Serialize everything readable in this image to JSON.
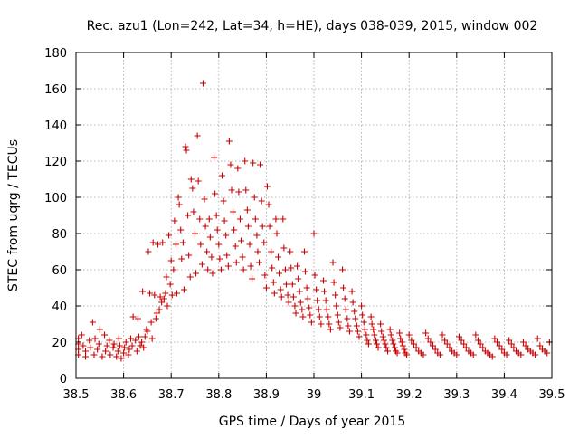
{
  "chart_data": {
    "type": "scatter",
    "title": "Rec. azu1 (Lon=242, Lat=34, h=HE), days 038-039, 2015, window 002",
    "xlabel": "GPS time / Days of year 2015",
    "ylabel": "STEC from uqrg / TECUs",
    "xlim": [
      38.5,
      39.5
    ],
    "ylim": [
      0,
      180
    ],
    "xticks": [
      38.5,
      38.6,
      38.7,
      38.8,
      38.9,
      39,
      39.1,
      39.2,
      39.3,
      39.4,
      39.5
    ],
    "xtick_labels": [
      "38.5",
      "38.6",
      "38.7",
      "38.8",
      "38.9",
      "39",
      "39.1",
      "39.2",
      "39.3",
      "39.4",
      "39.5"
    ],
    "yticks": [
      0,
      20,
      40,
      60,
      80,
      100,
      120,
      140,
      160,
      180
    ],
    "ytick_labels": [
      "0",
      "20",
      "40",
      "60",
      "80",
      "100",
      "120",
      "140",
      "160",
      "180"
    ],
    "grid": true,
    "marker": "+",
    "color": "#cc0000",
    "series": [
      {
        "name": "STEC",
        "points": [
          [
            38.505,
            22
          ],
          [
            38.505,
            19
          ],
          [
            38.505,
            16
          ],
          [
            38.505,
            13
          ],
          [
            38.512,
            24
          ],
          [
            38.515,
            18
          ],
          [
            38.52,
            15
          ],
          [
            38.52,
            12
          ],
          [
            38.528,
            21
          ],
          [
            38.53,
            17
          ],
          [
            38.535,
            31
          ],
          [
            38.538,
            13
          ],
          [
            38.54,
            22
          ],
          [
            38.545,
            16
          ],
          [
            38.548,
            19
          ],
          [
            38.55,
            27
          ],
          [
            38.555,
            12
          ],
          [
            38.56,
            24
          ],
          [
            38.562,
            15
          ],
          [
            38.565,
            18
          ],
          [
            38.57,
            21
          ],
          [
            38.572,
            13
          ],
          [
            38.578,
            17
          ],
          [
            38.58,
            19
          ],
          [
            38.585,
            12
          ],
          [
            38.588,
            15
          ],
          [
            38.59,
            22
          ],
          [
            38.592,
            18
          ],
          [
            38.595,
            11
          ],
          [
            38.6,
            14
          ],
          [
            38.602,
            17
          ],
          [
            38.605,
            20
          ],
          [
            38.61,
            13
          ],
          [
            38.612,
            16
          ],
          [
            38.615,
            22
          ],
          [
            38.618,
            18
          ],
          [
            38.62,
            34
          ],
          [
            38.625,
            21
          ],
          [
            38.628,
            15
          ],
          [
            38.63,
            33
          ],
          [
            38.632,
            23
          ],
          [
            38.635,
            18
          ],
          [
            38.638,
            20
          ],
          [
            38.64,
            48
          ],
          [
            38.642,
            17
          ],
          [
            38.645,
            23
          ],
          [
            38.648,
            27
          ],
          [
            38.65,
            26
          ],
          [
            38.652,
            70
          ],
          [
            38.655,
            47
          ],
          [
            38.658,
            31
          ],
          [
            38.66,
            22
          ],
          [
            38.662,
            75
          ],
          [
            38.665,
            46
          ],
          [
            38.668,
            33
          ],
          [
            38.67,
            36
          ],
          [
            38.672,
            74
          ],
          [
            38.675,
            38
          ],
          [
            38.677,
            45
          ],
          [
            38.68,
            42
          ],
          [
            38.682,
            75
          ],
          [
            38.685,
            44
          ],
          [
            38.688,
            47
          ],
          [
            38.69,
            56
          ],
          [
            38.692,
            40
          ],
          [
            38.695,
            79
          ],
          [
            38.698,
            52
          ],
          [
            38.7,
            65
          ],
          [
            38.702,
            46
          ],
          [
            38.705,
            60
          ],
          [
            38.707,
            87
          ],
          [
            38.71,
            74
          ],
          [
            38.712,
            47
          ],
          [
            38.715,
            100
          ],
          [
            38.717,
            96
          ],
          [
            38.72,
            82
          ],
          [
            38.722,
            66
          ],
          [
            38.725,
            75
          ],
          [
            38.727,
            49
          ],
          [
            38.73,
            128
          ],
          [
            38.732,
            126
          ],
          [
            38.735,
            90
          ],
          [
            38.737,
            68
          ],
          [
            38.74,
            56
          ],
          [
            38.742,
            110
          ],
          [
            38.745,
            105
          ],
          [
            38.747,
            92
          ],
          [
            38.75,
            80
          ],
          [
            38.752,
            58
          ],
          [
            38.755,
            134
          ],
          [
            38.757,
            109
          ],
          [
            38.76,
            88
          ],
          [
            38.762,
            74
          ],
          [
            38.765,
            63
          ],
          [
            38.767,
            163
          ],
          [
            38.77,
            99
          ],
          [
            38.772,
            84
          ],
          [
            38.775,
            70
          ],
          [
            38.777,
            60
          ],
          [
            38.78,
            88
          ],
          [
            38.782,
            78
          ],
          [
            38.785,
            67
          ],
          [
            38.787,
            58
          ],
          [
            38.79,
            122
          ],
          [
            38.792,
            102
          ],
          [
            38.795,
            90
          ],
          [
            38.797,
            82
          ],
          [
            38.8,
            74
          ],
          [
            38.802,
            66
          ],
          [
            38.805,
            60
          ],
          [
            38.807,
            112
          ],
          [
            38.81,
            98
          ],
          [
            38.812,
            87
          ],
          [
            38.815,
            79
          ],
          [
            38.817,
            68
          ],
          [
            38.82,
            62
          ],
          [
            38.822,
            131
          ],
          [
            38.825,
            118
          ],
          [
            38.827,
            104
          ],
          [
            38.83,
            92
          ],
          [
            38.832,
            82
          ],
          [
            38.835,
            73
          ],
          [
            38.837,
            64
          ],
          [
            38.84,
            116
          ],
          [
            38.842,
            103
          ],
          [
            38.845,
            88
          ],
          [
            38.847,
            76
          ],
          [
            38.85,
            67
          ],
          [
            38.852,
            60
          ],
          [
            38.855,
            120
          ],
          [
            38.857,
            104
          ],
          [
            38.86,
            93
          ],
          [
            38.862,
            84
          ],
          [
            38.865,
            74
          ],
          [
            38.867,
            62
          ],
          [
            38.87,
            55
          ],
          [
            38.872,
            119
          ],
          [
            38.875,
            100
          ],
          [
            38.877,
            88
          ],
          [
            38.88,
            79
          ],
          [
            38.882,
            70
          ],
          [
            38.885,
            64
          ],
          [
            38.887,
            118
          ],
          [
            38.89,
            98
          ],
          [
            38.892,
            84
          ],
          [
            38.895,
            75
          ],
          [
            38.897,
            57
          ],
          [
            38.9,
            50
          ],
          [
            38.902,
            106
          ],
          [
            38.905,
            96
          ],
          [
            38.907,
            84
          ],
          [
            38.91,
            70
          ],
          [
            38.912,
            61
          ],
          [
            38.915,
            53
          ],
          [
            38.917,
            47
          ],
          [
            38.92,
            88
          ],
          [
            38.922,
            80
          ],
          [
            38.925,
            67
          ],
          [
            38.927,
            58
          ],
          [
            38.93,
            49
          ],
          [
            38.932,
            45
          ],
          [
            38.935,
            88
          ],
          [
            38.937,
            72
          ],
          [
            38.94,
            60
          ],
          [
            38.942,
            52
          ],
          [
            38.945,
            46
          ],
          [
            38.947,
            42
          ],
          [
            38.95,
            70
          ],
          [
            38.952,
            61
          ],
          [
            38.955,
            52
          ],
          [
            38.957,
            45
          ],
          [
            38.96,
            40
          ],
          [
            38.962,
            36
          ],
          [
            38.965,
            62
          ],
          [
            38.967,
            55
          ],
          [
            38.97,
            48
          ],
          [
            38.972,
            42
          ],
          [
            38.975,
            38
          ],
          [
            38.977,
            34
          ],
          [
            38.98,
            70
          ],
          [
            38.982,
            59
          ],
          [
            38.985,
            50
          ],
          [
            38.987,
            44
          ],
          [
            38.99,
            39
          ],
          [
            38.992,
            35
          ],
          [
            38.995,
            31
          ],
          [
            39.0,
            80
          ],
          [
            39.002,
            57
          ],
          [
            39.005,
            49
          ],
          [
            39.007,
            43
          ],
          [
            39.01,
            38
          ],
          [
            39.012,
            34
          ],
          [
            39.015,
            30
          ],
          [
            39.02,
            54
          ],
          [
            39.022,
            48
          ],
          [
            39.025,
            43
          ],
          [
            39.027,
            38
          ],
          [
            39.03,
            34
          ],
          [
            39.032,
            30
          ],
          [
            39.035,
            27
          ],
          [
            39.04,
            64
          ],
          [
            39.042,
            53
          ],
          [
            39.045,
            46
          ],
          [
            39.047,
            40
          ],
          [
            39.05,
            35
          ],
          [
            39.052,
            31
          ],
          [
            39.055,
            28
          ],
          [
            39.06,
            60
          ],
          [
            39.062,
            50
          ],
          [
            39.065,
            44
          ],
          [
            39.067,
            38
          ],
          [
            39.07,
            33
          ],
          [
            39.072,
            29
          ],
          [
            39.075,
            26
          ],
          [
            39.08,
            48
          ],
          [
            39.082,
            42
          ],
          [
            39.085,
            37
          ],
          [
            39.087,
            33
          ],
          [
            39.09,
            29
          ],
          [
            39.092,
            26
          ],
          [
            39.095,
            23
          ],
          [
            39.1,
            40
          ],
          [
            39.102,
            35
          ],
          [
            39.105,
            31
          ],
          [
            39.107,
            27
          ],
          [
            39.11,
            24
          ],
          [
            39.112,
            21
          ],
          [
            39.115,
            19
          ],
          [
            39.12,
            34
          ],
          [
            39.122,
            30
          ],
          [
            39.125,
            27
          ],
          [
            39.127,
            24
          ],
          [
            39.13,
            21
          ],
          [
            39.132,
            19
          ],
          [
            39.135,
            17
          ],
          [
            39.14,
            30
          ],
          [
            39.142,
            26
          ],
          [
            39.145,
            23
          ],
          [
            39.147,
            21
          ],
          [
            39.15,
            19
          ],
          [
            39.152,
            17
          ],
          [
            39.155,
            15
          ],
          [
            39.16,
            27
          ],
          [
            39.162,
            24
          ],
          [
            39.165,
            21
          ],
          [
            39.167,
            19
          ],
          [
            39.17,
            17
          ],
          [
            39.172,
            15
          ],
          [
            39.175,
            14
          ],
          [
            39.18,
            25
          ],
          [
            39.182,
            22
          ],
          [
            39.185,
            20
          ],
          [
            39.187,
            18
          ],
          [
            39.19,
            16
          ],
          [
            39.192,
            14
          ],
          [
            39.195,
            13
          ],
          [
            39.2,
            24
          ],
          [
            39.205,
            21
          ],
          [
            39.21,
            19
          ],
          [
            39.215,
            17
          ],
          [
            39.22,
            15
          ],
          [
            39.225,
            14
          ],
          [
            39.23,
            13
          ],
          [
            39.235,
            25
          ],
          [
            39.24,
            22
          ],
          [
            39.245,
            20
          ],
          [
            39.25,
            18
          ],
          [
            39.255,
            16
          ],
          [
            39.26,
            14
          ],
          [
            39.265,
            13
          ],
          [
            39.27,
            24
          ],
          [
            39.275,
            21
          ],
          [
            39.28,
            19
          ],
          [
            39.285,
            17
          ],
          [
            39.29,
            15
          ],
          [
            39.295,
            14
          ],
          [
            39.3,
            13
          ],
          [
            39.305,
            23
          ],
          [
            39.31,
            21
          ],
          [
            39.315,
            19
          ],
          [
            39.32,
            17
          ],
          [
            39.325,
            15
          ],
          [
            39.33,
            14
          ],
          [
            39.335,
            13
          ],
          [
            39.34,
            24
          ],
          [
            39.345,
            21
          ],
          [
            39.35,
            19
          ],
          [
            39.355,
            17
          ],
          [
            39.36,
            15
          ],
          [
            39.365,
            14
          ],
          [
            39.37,
            13
          ],
          [
            39.375,
            12
          ],
          [
            39.38,
            22
          ],
          [
            39.385,
            20
          ],
          [
            39.39,
            18
          ],
          [
            39.395,
            16
          ],
          [
            39.4,
            14
          ],
          [
            39.405,
            13
          ],
          [
            39.41,
            21
          ],
          [
            39.415,
            19
          ],
          [
            39.42,
            17
          ],
          [
            39.425,
            15
          ],
          [
            39.43,
            14
          ],
          [
            39.435,
            13
          ],
          [
            39.44,
            20
          ],
          [
            39.445,
            18
          ],
          [
            39.45,
            16
          ],
          [
            39.455,
            15
          ],
          [
            39.46,
            14
          ],
          [
            39.465,
            13
          ],
          [
            39.47,
            22
          ],
          [
            39.475,
            18
          ],
          [
            39.48,
            16
          ],
          [
            39.485,
            15
          ],
          [
            39.49,
            14
          ],
          [
            39.495,
            20
          ]
        ]
      }
    ]
  }
}
